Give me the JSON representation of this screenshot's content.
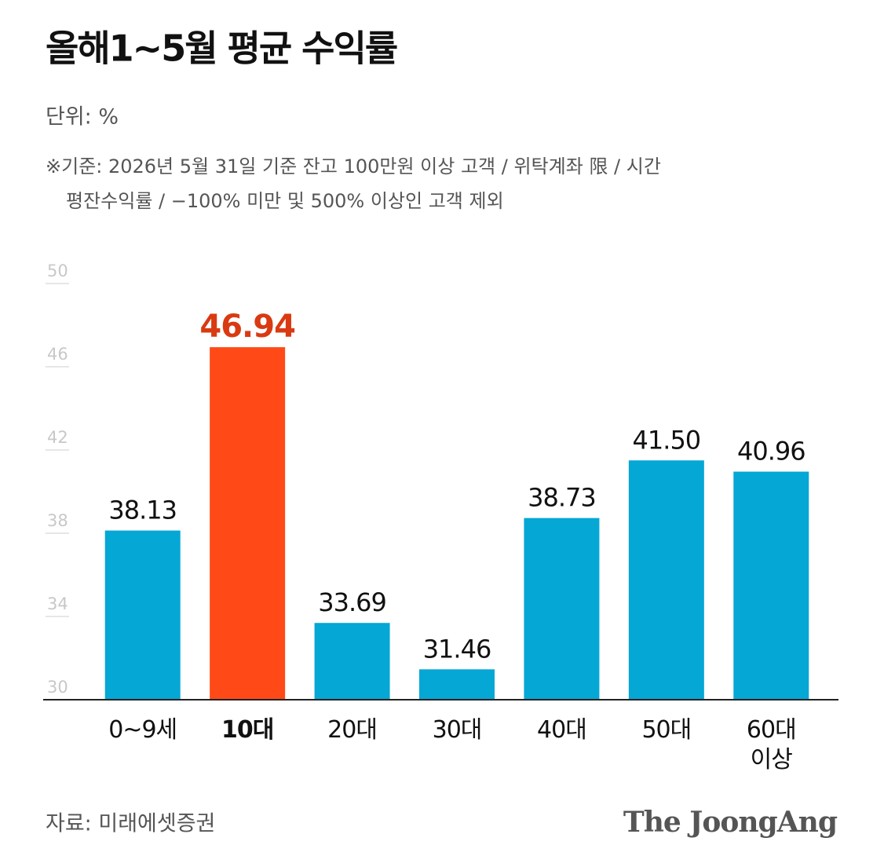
{
  "chart_data": {
    "type": "bar",
    "title": "올해1~5월 평균 수익률",
    "unit_label": "단위: %",
    "notes": [
      "※기준: 2026년 5월 31일 기준 잔고 100만원 이상  고객 / 위탁계좌 限 / 시간",
      "평잔수익률 / −100% 미만 및 500% 이상인 고객 제외"
    ],
    "categories": [
      "0~9세",
      "10대",
      "20대",
      "30대",
      "40대",
      "50대",
      "60대\n이상"
    ],
    "values": [
      38.13,
      46.94,
      33.69,
      31.46,
      38.73,
      41.5,
      40.96
    ],
    "value_labels": [
      "38.13",
      "46.94",
      "33.69",
      "31.46",
      "38.73",
      "41.50",
      "40.96"
    ],
    "color": "#05a7d5",
    "colors": [
      "#05a7d5",
      "#ff4a17",
      "#05a7d5",
      "#05a7d5",
      "#05a7d5",
      "#05a7d5",
      "#05a7d5"
    ],
    "ylim": [
      30,
      50
    ],
    "yticks": [
      30,
      34,
      38,
      42,
      46,
      50
    ],
    "source": "자료: 미래에셋증권",
    "brand": "The JoongAng"
  }
}
